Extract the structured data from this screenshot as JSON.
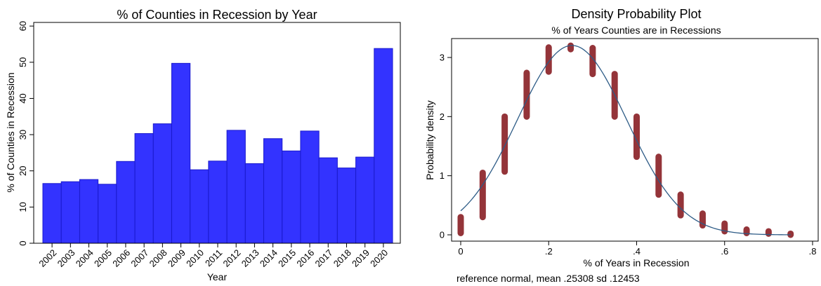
{
  "chart_data": [
    {
      "type": "bar",
      "title": "% of Counties in Recession by Year",
      "xlabel": "Year",
      "ylabel": "% of Counties in Recession",
      "categories": [
        "2002",
        "2003",
        "2004",
        "2005",
        "2006",
        "2007",
        "2008",
        "2009",
        "2010",
        "2011",
        "2012",
        "2013",
        "2014",
        "2015",
        "2016",
        "2017",
        "2018",
        "2019",
        "2020"
      ],
      "values": [
        16.5,
        17.0,
        17.6,
        16.3,
        22.6,
        30.3,
        33.0,
        49.7,
        20.3,
        22.7,
        31.2,
        22.0,
        28.9,
        25.5,
        31.0,
        23.6,
        20.8,
        23.8,
        53.8
      ],
      "yticks": [
        0,
        10,
        20,
        30,
        40,
        50,
        60
      ],
      "ytick_labels": [
        "0",
        "10",
        "20",
        "30",
        "40",
        "50",
        "60"
      ],
      "ylim": [
        0,
        61
      ],
      "grid": false,
      "bar_color": "#3333ff",
      "bar_edge_color": "#1a1acc"
    },
    {
      "type": "scatter",
      "title": "Density Probability Plot",
      "subtitle": "% of Years Counties are in Recessions",
      "xlabel": "% of Years in Recession",
      "ylabel": "Probability density",
      "note": "reference normal, mean .25308 sd .12453",
      "xticks": [
        0,
        0.2,
        0.4,
        0.6,
        0.8
      ],
      "xtick_labels": [
        "0",
        ".2",
        ".4",
        ".6",
        ".8"
      ],
      "yticks": [
        0,
        1,
        2,
        3
      ],
      "ytick_labels": [
        "0",
        "1",
        "2",
        "3"
      ],
      "xlim": [
        -0.005,
        0.8
      ],
      "ylim": [
        -0.04,
        3.35
      ],
      "grid": false,
      "reference_normal": {
        "mean": 0.25308,
        "sd": 0.12453
      },
      "series": [
        {
          "x": [
            0,
            0.05,
            0.1,
            0.15,
            0.2,
            0.25,
            0.3,
            0.35,
            0.4,
            0.45,
            0.5,
            0.55,
            0.6,
            0.65,
            0.7,
            0.75
          ],
          "ymin": [
            0.03,
            0.3,
            1.07,
            2.0,
            2.76,
            3.14,
            2.72,
            2.0,
            1.32,
            0.68,
            0.33,
            0.16,
            0.06,
            0.03,
            0.02,
            0.0
          ],
          "ymax": [
            0.3,
            1.05,
            2.0,
            2.74,
            3.17,
            3.2,
            3.16,
            2.72,
            2.0,
            1.32,
            0.68,
            0.36,
            0.19,
            0.09,
            0.06,
            0.02
          ]
        }
      ],
      "point_color": "#943439",
      "line_color": "#2d5b86",
      "title_color": "#1f3f69"
    }
  ]
}
